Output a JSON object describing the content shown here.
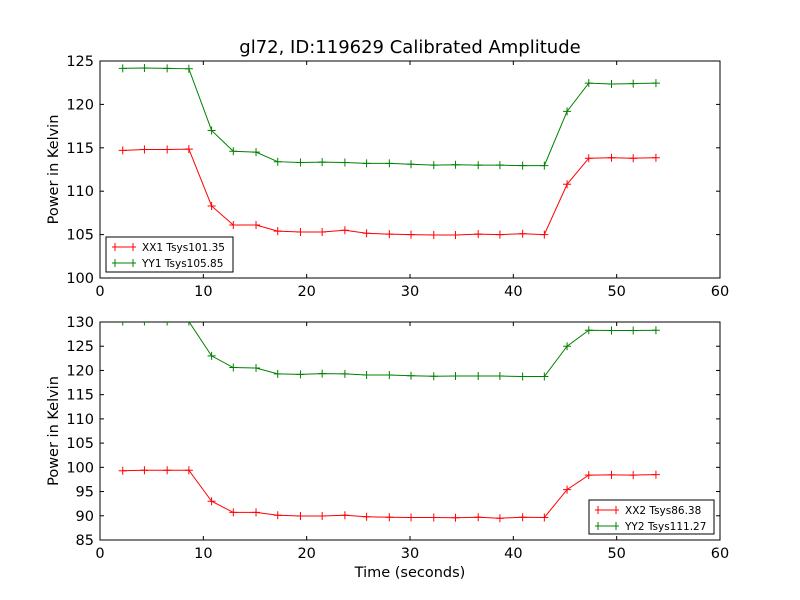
{
  "chart_data": [
    {
      "type": "line",
      "title": "gl72, ID:119629 Calibrated Amplitude",
      "xlabel": "",
      "ylabel": "Power in Kelvin",
      "xlim": [
        0,
        60
      ],
      "ylim": [
        100,
        125
      ],
      "xticks": [
        0,
        10,
        20,
        30,
        40,
        50,
        60
      ],
      "yticks": [
        100,
        105,
        110,
        115,
        120,
        125
      ],
      "grid": false,
      "legend_position": "lower-left",
      "x": [
        2.2,
        4.3,
        6.5,
        8.6,
        10.8,
        12.9,
        15.1,
        17.2,
        19.4,
        21.5,
        23.7,
        25.8,
        28.0,
        30.1,
        32.3,
        34.4,
        36.6,
        38.7,
        40.9,
        43.0,
        45.2,
        47.3,
        49.5,
        51.6,
        53.8
      ],
      "series": [
        {
          "name": "XX1 Tsys101.35",
          "color": "#ff0000",
          "marker": "+",
          "values": [
            114.7,
            114.8,
            114.8,
            114.85,
            108.3,
            106.1,
            106.1,
            105.4,
            105.3,
            105.3,
            105.5,
            105.15,
            105.05,
            105.0,
            104.95,
            104.95,
            105.05,
            105.0,
            105.1,
            105.0,
            110.8,
            113.8,
            113.85,
            113.8,
            113.85
          ]
        },
        {
          "name": "YY1 Tsys105.85",
          "color": "#008000",
          "marker": "+",
          "values": [
            124.15,
            124.2,
            124.15,
            124.1,
            117.0,
            114.6,
            114.5,
            113.4,
            113.3,
            113.35,
            113.3,
            113.2,
            113.2,
            113.1,
            113.0,
            113.05,
            113.0,
            113.0,
            112.95,
            112.95,
            119.2,
            122.45,
            122.35,
            122.4,
            122.45
          ]
        }
      ]
    },
    {
      "type": "line",
      "title": "",
      "xlabel": "Time (seconds)",
      "ylabel": "Power in Kelvin",
      "xlim": [
        0,
        60
      ],
      "ylim": [
        85,
        130
      ],
      "xticks": [
        0,
        10,
        20,
        30,
        40,
        50,
        60
      ],
      "yticks": [
        85,
        90,
        95,
        100,
        105,
        110,
        115,
        120,
        125,
        130
      ],
      "grid": false,
      "legend_position": "lower-right",
      "x": [
        2.2,
        4.3,
        6.5,
        8.6,
        10.8,
        12.9,
        15.1,
        17.2,
        19.4,
        21.5,
        23.7,
        25.8,
        28.0,
        30.1,
        32.3,
        34.4,
        36.6,
        38.7,
        40.9,
        43.0,
        45.2,
        47.3,
        49.5,
        51.6,
        53.8
      ],
      "series": [
        {
          "name": "XX2 Tsys86.38",
          "color": "#ff0000",
          "marker": "+",
          "values": [
            99.3,
            99.4,
            99.4,
            99.4,
            93.0,
            90.7,
            90.7,
            90.1,
            89.95,
            89.95,
            90.1,
            89.8,
            89.7,
            89.65,
            89.65,
            89.6,
            89.7,
            89.5,
            89.7,
            89.65,
            95.4,
            98.4,
            98.45,
            98.4,
            98.5
          ]
        },
        {
          "name": "YY2 Tsys111.27",
          "color": "#008000",
          "marker": "+",
          "values": [
            130.1,
            130.1,
            130.1,
            130.1,
            123.0,
            120.6,
            120.5,
            119.3,
            119.2,
            119.35,
            119.3,
            119.05,
            119.05,
            118.9,
            118.8,
            118.85,
            118.85,
            118.85,
            118.75,
            118.75,
            125.0,
            128.3,
            128.25,
            128.25,
            128.3
          ]
        }
      ]
    }
  ]
}
